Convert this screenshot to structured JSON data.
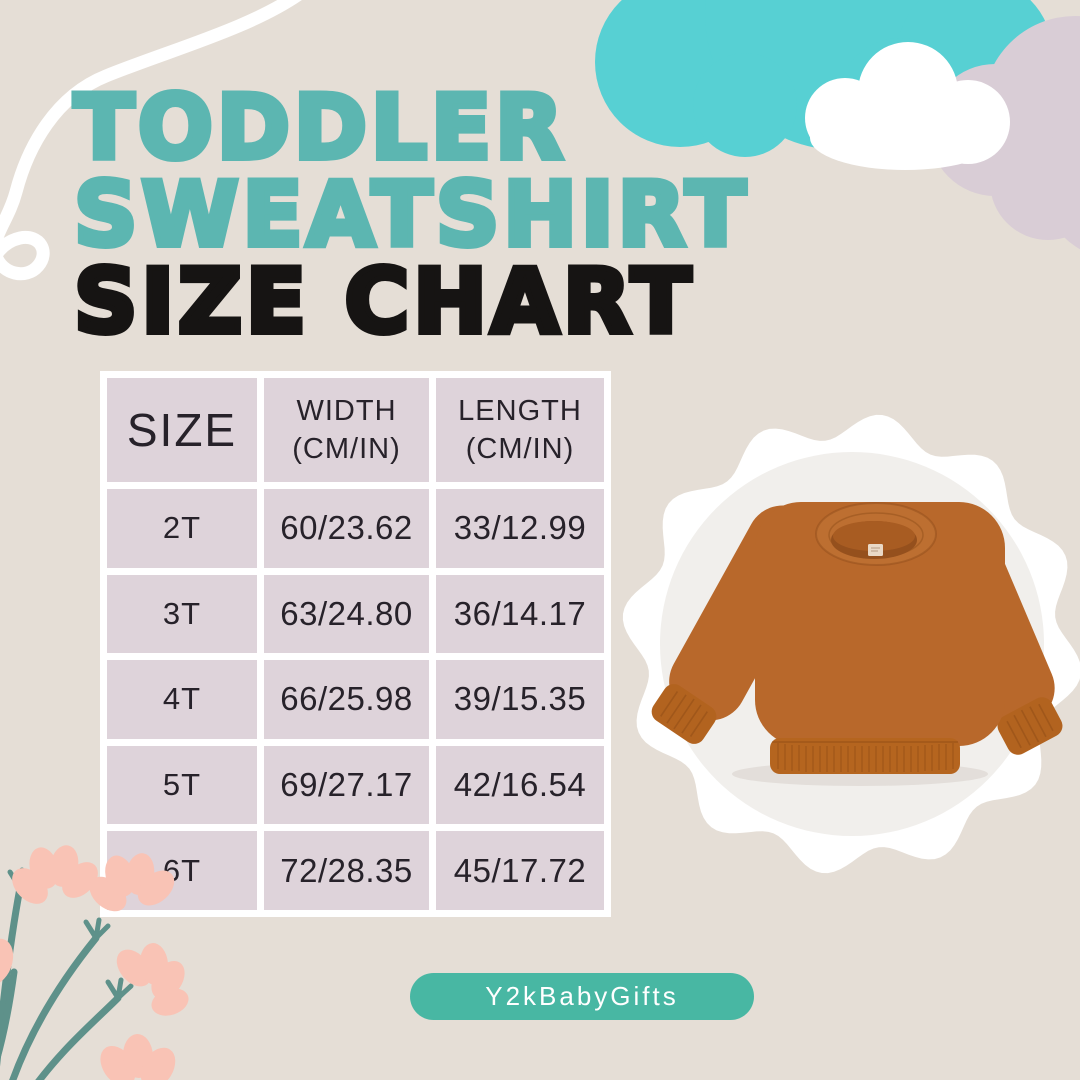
{
  "title": {
    "line1": "TODDLER",
    "line2": "SWEATSHIRT",
    "line3": "SIZE CHART"
  },
  "size_table_header": {
    "size": "SIZE",
    "width_label": "WIDTH",
    "width_unit": "(CM/IN)",
    "length_label": "LENGTH",
    "length_unit": "(CM/IN)"
  },
  "chart_data": {
    "type": "table",
    "title": "TODDLER SWEATSHIRT SIZE CHART",
    "columns": [
      "SIZE",
      "WIDTH (CM/IN)",
      "LENGTH (CM/IN)"
    ],
    "rows": [
      [
        "2T",
        "60/23.62",
        "33/12.99"
      ],
      [
        "3T",
        "63/24.80",
        "36/14.17"
      ],
      [
        "4T",
        "66/25.98",
        "39/15.35"
      ],
      [
        "5T",
        "69/27.17",
        "42/16.54"
      ],
      [
        "6T",
        "72/28.35",
        "45/17.72"
      ]
    ]
  },
  "footer": {
    "brand": "Y2kBabyGifts"
  },
  "product_image": {
    "description": "rust-orange toddler crewneck sweatshirt on white scalloped circle"
  },
  "colors": {
    "background": "#e5ded6",
    "title_teal": "#5cb6b1",
    "title_dark": "#161413",
    "cloud_turquoise": "#57d0d3",
    "cloud_lavender": "#d9cdd6",
    "cloud_white": "#ffffff",
    "table_cell": "#ded3da",
    "table_gap": "#ffffff",
    "table_text": "#27222a",
    "pill": "#48b7a3",
    "pill_text": "#ffffff",
    "flower_pink": "#f9c3b5",
    "stem_teal": "#5e918a",
    "sweatshirt_body": "#b8682b",
    "sweatshirt_shadow": "#95501d",
    "photo_backdrop": "#f1efec"
  }
}
